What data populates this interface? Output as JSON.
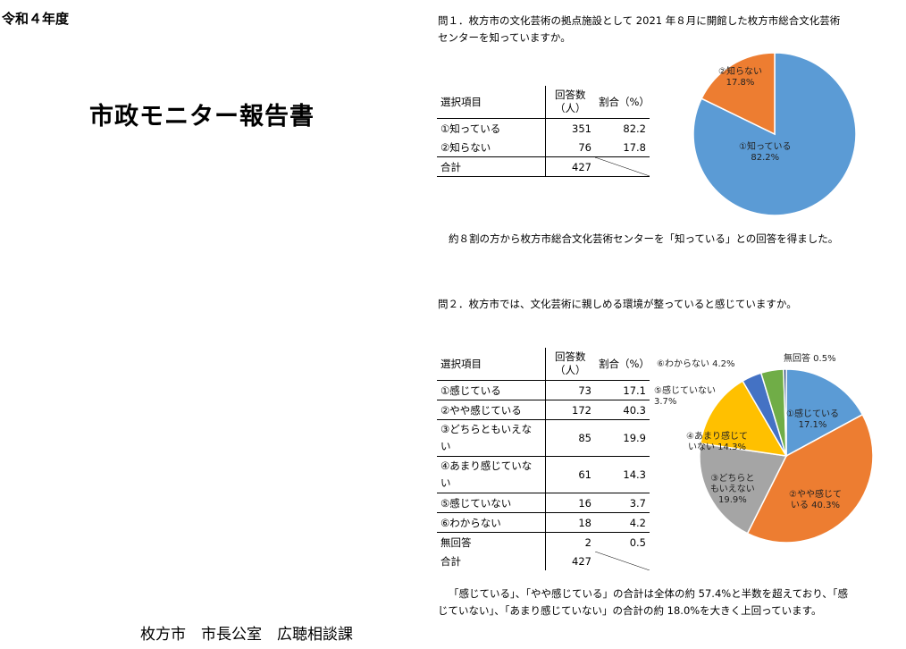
{
  "cover": {
    "era": "令和４年度",
    "title": "市政モニター報告書",
    "footer": "枚方市　市長公室　広聴相談課"
  },
  "q1": {
    "question": "問１．枚方市の文化芸術の拠点施設として 2021 年８月に開館した枚方市総合文化芸術センターを知っていますか。",
    "table": {
      "headers": {
        "item": "選択項目",
        "count": "回答数（人）",
        "ratio": "割合（%）"
      },
      "rows": [
        {
          "label": "①知っている",
          "count": "351",
          "ratio": "82.2"
        },
        {
          "label": "②知らない",
          "count": "76",
          "ratio": "17.8"
        }
      ],
      "total": {
        "label": "合計",
        "count": "427"
      }
    },
    "summary": "約８割の方から枚方市総合文化芸術センターを「知っている」との回答を得ました。",
    "pie_labels": {
      "s1": "①知っている\n82.2%",
      "s2": "②知らない\n17.8%"
    }
  },
  "q2": {
    "question": "問２．枚方市では、文化芸術に親しめる環境が整っていると感じていますか。",
    "table": {
      "headers": {
        "item": "選択項目",
        "count": "回答数（人）",
        "ratio": "割合（%）"
      },
      "rows": [
        {
          "label": "①感じている",
          "count": "73",
          "ratio": "17.1"
        },
        {
          "label": "②やや感じている",
          "count": "172",
          "ratio": "40.3"
        },
        {
          "label": "③どちらともいえない",
          "count": "85",
          "ratio": "19.9"
        },
        {
          "label": "④あまり感じていない",
          "count": "61",
          "ratio": "14.3"
        },
        {
          "label": "⑤感じていない",
          "count": "16",
          "ratio": "3.7"
        },
        {
          "label": "⑥わからない",
          "count": "18",
          "ratio": "4.2"
        },
        {
          "label": "無回答",
          "count": "2",
          "ratio": "0.5"
        }
      ],
      "total": {
        "label": "合計",
        "count": "427"
      }
    },
    "summary": "「感じている」、「やや感じている」の合計は全体の約 57.4%と半数を超えており、「感じていない」、「あまり感じていない」の合計の約 18.0%を大きく上回っています。",
    "pie_labels": {
      "s1": "①感じている\n17.1%",
      "s2": "②やや感じて\nいる 40.3%",
      "s3": "③どちらと\nもいえない\n19.9%",
      "s4": "④あまり感じて\nいない 14.3%",
      "s5": "⑤感じていない\n3.7%",
      "s6": "⑥わからない 4.2%",
      "s7": "無回答 0.5%"
    }
  },
  "chart_data": [
    {
      "type": "pie",
      "categories": [
        "①知っている",
        "②知らない"
      ],
      "values": [
        82.2,
        17.8
      ],
      "colors": [
        "#5B9BD5",
        "#ED7D31"
      ]
    },
    {
      "type": "pie",
      "categories": [
        "①感じている",
        "②やや感じている",
        "③どちらともいえない",
        "④あまり感じていない",
        "⑤感じていない",
        "⑥わからない",
        "無回答"
      ],
      "values": [
        17.1,
        40.3,
        19.9,
        14.3,
        3.7,
        4.2,
        0.5
      ],
      "colors": [
        "#5B9BD5",
        "#ED7D31",
        "#A5A5A5",
        "#FFC000",
        "#4472C4",
        "#70AD47",
        "#264478"
      ]
    }
  ]
}
